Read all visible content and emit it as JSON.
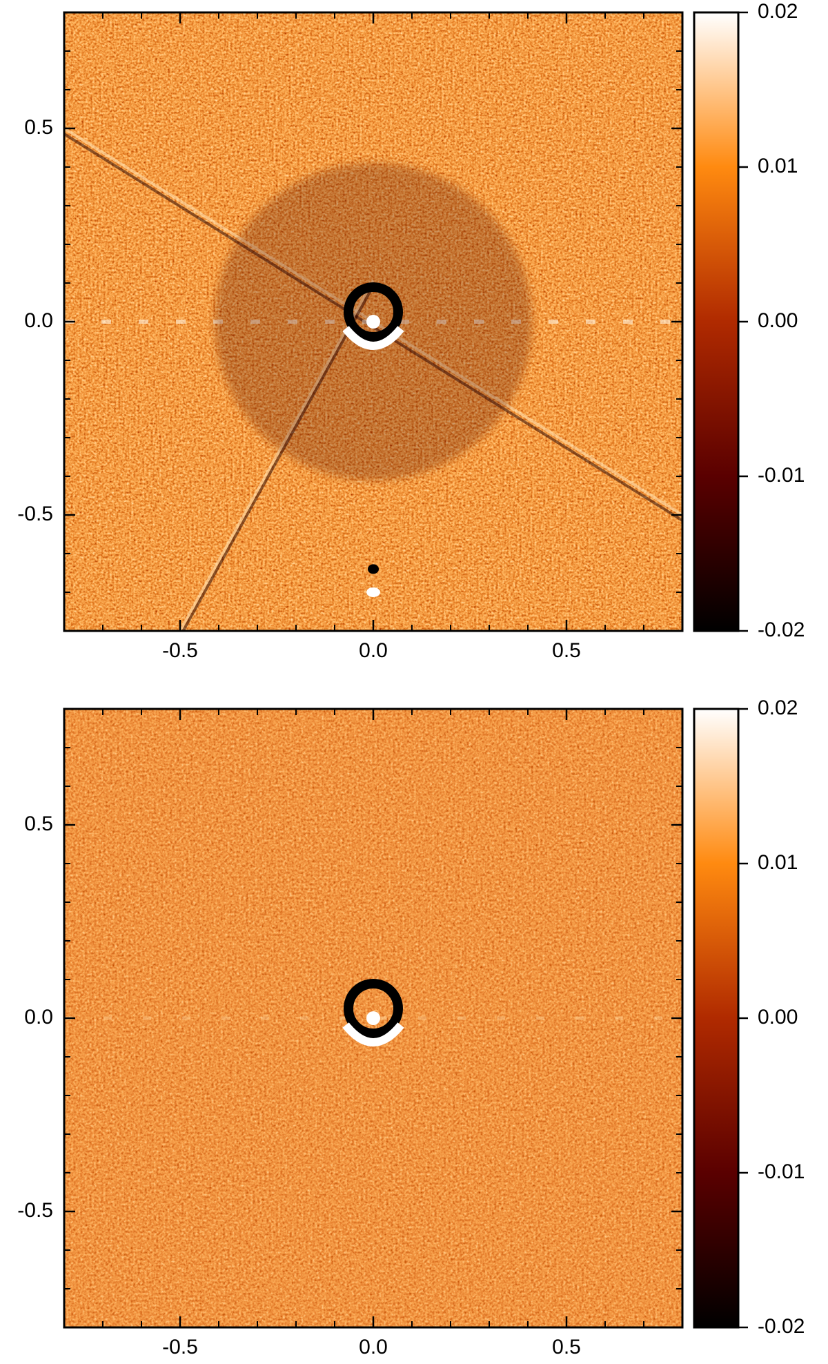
{
  "chart_data": [
    {
      "type": "image",
      "xlim": [
        -0.8,
        0.8
      ],
      "ylim": [
        -0.8,
        0.8
      ],
      "xticks": [
        -0.5,
        {
          "value": 0,
          "label": "0.0"
        },
        0.5
      ],
      "yticks": [
        -0.5,
        {
          "value": 0,
          "label": "0.0"
        },
        0.5
      ],
      "xminorticks": [
        -0.7,
        -0.6,
        -0.4,
        -0.3,
        -0.2,
        -0.1,
        0.1,
        0.2,
        0.3,
        0.4,
        0.6,
        0.7
      ],
      "yminorticks": [
        -0.7,
        -0.6,
        -0.4,
        -0.3,
        -0.2,
        -0.1,
        0.1,
        0.2,
        0.3,
        0.4,
        0.6,
        0.7
      ],
      "colorbar": {
        "clim": [
          -0.02,
          0.02
        ],
        "ticks": [
          -0.02,
          -0.01,
          {
            "value": 0,
            "label": "0.00"
          },
          0.01,
          0.02
        ],
        "colormap": [
          "#000000",
          "#5a0000",
          "#b02a00",
          "#ff8a10",
          "#ffffff"
        ]
      }
    },
    {
      "type": "image",
      "xlim": [
        -0.8,
        0.8
      ],
      "ylim": [
        -0.8,
        0.8
      ],
      "xticks": [
        -0.5,
        {
          "value": 0,
          "label": "0.0"
        },
        0.5
      ],
      "yticks": [
        -0.5,
        {
          "value": 0,
          "label": "0.0"
        },
        0.5
      ],
      "xminorticks": [
        -0.7,
        -0.6,
        -0.4,
        -0.3,
        -0.2,
        -0.1,
        0.1,
        0.2,
        0.3,
        0.4,
        0.6,
        0.7
      ],
      "yminorticks": [
        -0.7,
        -0.6,
        -0.4,
        -0.3,
        -0.2,
        -0.1,
        0.1,
        0.2,
        0.3,
        0.4,
        0.6,
        0.7
      ],
      "colorbar": {
        "clim": [
          -0.02,
          0.02
        ],
        "ticks": [
          -0.02,
          -0.01,
          {
            "value": 0,
            "label": "0.00"
          },
          0.01,
          0.02
        ],
        "colormap": [
          "#000000",
          "#5a0000",
          "#b02a00",
          "#ff8a10",
          "#ffffff"
        ]
      }
    }
  ]
}
